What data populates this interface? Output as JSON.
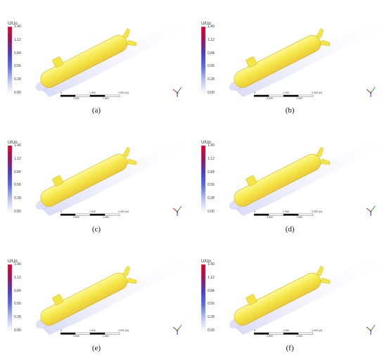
{
  "legend": {
    "title": "U/Uo",
    "ticks": [
      "1.40",
      "1.12",
      "0.84",
      "0.56",
      "0.28",
      "0.00"
    ],
    "colors": [
      "#e8002a",
      "#a0105e",
      "#4a3cc8",
      "#5a6ce8",
      "#b8c0f6",
      "#ffffff"
    ]
  },
  "scale": {
    "top_labels": [
      "0",
      "1.000",
      "2.000 (m)"
    ],
    "bottom_labels": [
      "0.500",
      "1.500"
    ]
  },
  "hull_color": "#f4e640",
  "captions": [
    "(a)",
    "(b)",
    "(c)",
    "(d)",
    "(e)",
    "(f)"
  ]
}
